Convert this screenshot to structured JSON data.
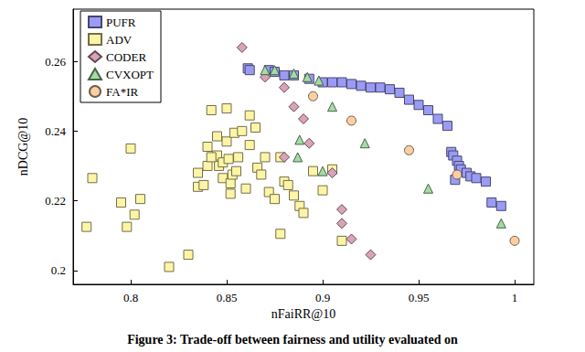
{
  "chart_data": {
    "type": "scatter",
    "title": "Figure 3: Trade-off between fairness and utility evaluated on",
    "x_label": "nFaiRR@10",
    "y_label": "nDCG@10",
    "xlim": [
      0.77,
      1.01
    ],
    "ylim": [
      0.196,
      0.275
    ],
    "xticks": [
      0.8,
      0.85,
      0.9,
      0.95,
      1
    ],
    "yticks": [
      0.2,
      0.22,
      0.24,
      0.26
    ],
    "grid": false,
    "legend": "top-left",
    "series": [
      {
        "name": "PUFR",
        "color": "#9b9bf5",
        "marker": "square",
        "x": [
          0.861,
          0.862,
          0.872,
          0.875,
          0.88,
          0.885,
          0.893,
          0.9,
          0.905,
          0.91,
          0.915,
          0.92,
          0.925,
          0.93,
          0.935,
          0.94,
          0.945,
          0.95,
          0.955,
          0.96,
          0.965,
          0.967,
          0.968,
          0.97,
          0.971,
          0.972,
          0.975,
          0.977,
          0.98,
          0.985,
          0.988,
          0.993,
          0.969
        ],
        "values": [
          0.258,
          0.2575,
          0.2575,
          0.257,
          0.256,
          0.256,
          0.255,
          0.254,
          0.254,
          0.254,
          0.2535,
          0.253,
          0.2525,
          0.2525,
          0.252,
          0.251,
          0.249,
          0.2475,
          0.246,
          0.2435,
          0.2415,
          0.234,
          0.233,
          0.2315,
          0.23,
          0.229,
          0.228,
          0.227,
          0.2265,
          0.2255,
          0.2195,
          0.2185,
          0.226
        ]
      },
      {
        "name": "ADV",
        "color": "#fdf5a6",
        "marker": "square",
        "x": [
          0.777,
          0.78,
          0.795,
          0.798,
          0.802,
          0.805,
          0.8,
          0.82,
          0.83,
          0.835,
          0.835,
          0.838,
          0.84,
          0.842,
          0.845,
          0.846,
          0.848,
          0.85,
          0.85,
          0.852,
          0.853,
          0.855,
          0.845,
          0.84,
          0.842,
          0.848,
          0.851,
          0.854,
          0.856,
          0.858,
          0.86,
          0.862,
          0.865,
          0.866,
          0.868,
          0.87,
          0.872,
          0.875,
          0.878,
          0.88,
          0.882,
          0.885,
          0.888,
          0.89,
          0.895,
          0.9,
          0.905,
          0.91,
          0.862,
          0.878,
          0.852
        ],
        "values": [
          0.2125,
          0.2265,
          0.2195,
          0.2125,
          0.216,
          0.2205,
          0.235,
          0.201,
          0.2045,
          0.224,
          0.228,
          0.2245,
          0.23,
          0.246,
          0.233,
          0.23,
          0.2265,
          0.237,
          0.2465,
          0.225,
          0.2275,
          0.2285,
          0.2385,
          0.2355,
          0.2325,
          0.231,
          0.232,
          0.2395,
          0.2325,
          0.24,
          0.2235,
          0.236,
          0.241,
          0.2295,
          0.2275,
          0.2325,
          0.2225,
          0.2205,
          0.2325,
          0.2255,
          0.2245,
          0.2215,
          0.2185,
          0.2165,
          0.2285,
          0.223,
          0.229,
          0.2085,
          0.2445,
          0.2105,
          0.222
        ]
      },
      {
        "name": "CODER",
        "color": "#d9a3b8",
        "marker": "diamond",
        "x": [
          0.858,
          0.87,
          0.88,
          0.885,
          0.89,
          0.88,
          0.905,
          0.91,
          0.915,
          0.91,
          0.925,
          0.893
        ],
        "values": [
          0.264,
          0.2555,
          0.2525,
          0.247,
          0.2435,
          0.2325,
          0.228,
          0.2135,
          0.209,
          0.2175,
          0.2045,
          0.2365
        ]
      },
      {
        "name": "CVXOPT",
        "color": "#a3dca3",
        "marker": "triangle",
        "x": [
          0.87,
          0.875,
          0.885,
          0.892,
          0.898,
          0.905,
          0.888,
          0.9,
          0.922,
          0.955,
          0.993,
          0.887
        ],
        "values": [
          0.2575,
          0.2575,
          0.2565,
          0.2555,
          0.2545,
          0.247,
          0.2375,
          0.2285,
          0.2365,
          0.2235,
          0.2135,
          0.2325
        ]
      },
      {
        "name": "FA*IR",
        "color": "#fbcfa3",
        "marker": "circle",
        "x": [
          0.895,
          0.915,
          0.945,
          0.97,
          1.0
        ],
        "values": [
          0.25,
          0.243,
          0.2345,
          0.2275,
          0.2085
        ]
      }
    ]
  }
}
